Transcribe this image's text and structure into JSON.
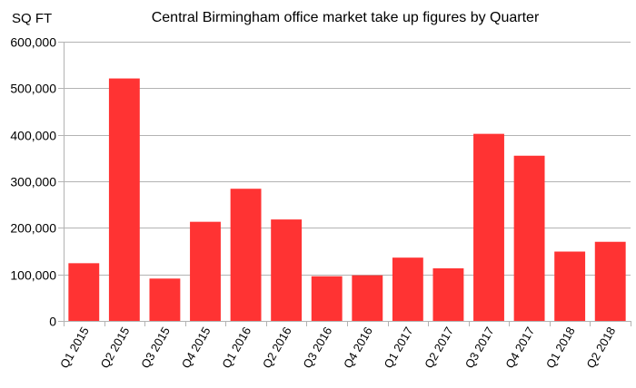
{
  "chart_data": {
    "type": "bar",
    "title": "Central Birmingham office market take up figures by Quarter",
    "unit_label": "SQ FT",
    "xlabel": "",
    "ylabel": "",
    "ylim": [
      0,
      600000
    ],
    "y_ticks": [
      0,
      100000,
      200000,
      300000,
      400000,
      500000,
      600000
    ],
    "y_tick_labels": [
      "0",
      "100,000",
      "200,000",
      "300,000",
      "400,000",
      "500,000",
      "600,000"
    ],
    "categories": [
      "Q1 2015",
      "Q2 2015",
      "Q3 2015",
      "Q4 2015",
      "Q1 2016",
      "Q2 2016",
      "Q3 2016",
      "Q4 2016",
      "Q1 2017",
      "Q2 2017",
      "Q3 2017",
      "Q4 2017",
      "Q1 2018",
      "Q2 2018"
    ],
    "values": [
      124000,
      521000,
      91000,
      213000,
      284000,
      218000,
      96000,
      98000,
      136000,
      113000,
      402000,
      355000,
      149000,
      170000
    ],
    "bar_color": "#ff3333",
    "grid": "horizontal",
    "legend": "none"
  }
}
